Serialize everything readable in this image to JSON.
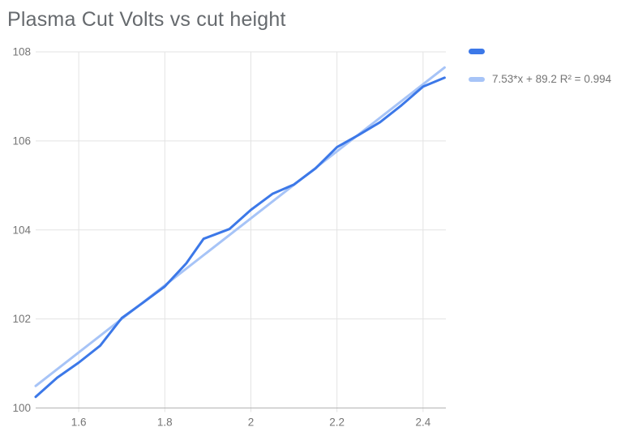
{
  "chart_data": {
    "type": "line",
    "title": "Plasma Cut Volts vs cut height",
    "xlabel": "",
    "ylabel": "",
    "xlim": [
      1.5,
      2.453
    ],
    "ylim": [
      100,
      108
    ],
    "grid": true,
    "legend_position": "top-right",
    "x_ticks": [
      {
        "value": 1.6,
        "label": "1.6"
      },
      {
        "value": 1.8,
        "label": "1.8"
      },
      {
        "value": 2.0,
        "label": "2"
      },
      {
        "value": 2.2,
        "label": "2.2"
      },
      {
        "value": 2.4,
        "label": "2.4"
      }
    ],
    "y_ticks": [
      {
        "value": 100,
        "label": "100"
      },
      {
        "value": 102,
        "label": "102"
      },
      {
        "value": 104,
        "label": "104"
      },
      {
        "value": 106,
        "label": "106"
      },
      {
        "value": 108,
        "label": "108"
      }
    ],
    "series": [
      {
        "name": "",
        "role": "data",
        "color": "#3c78e8",
        "points": [
          [
            1.5,
            100.25
          ],
          [
            1.55,
            100.68
          ],
          [
            1.6,
            101.02
          ],
          [
            1.65,
            101.4
          ],
          [
            1.7,
            102.02
          ],
          [
            1.75,
            102.37
          ],
          [
            1.8,
            102.73
          ],
          [
            1.85,
            103.25
          ],
          [
            1.89,
            103.8
          ],
          [
            1.95,
            104.02
          ],
          [
            2.0,
            104.45
          ],
          [
            2.05,
            104.81
          ],
          [
            2.1,
            105.02
          ],
          [
            2.15,
            105.38
          ],
          [
            2.2,
            105.86
          ],
          [
            2.25,
            106.13
          ],
          [
            2.3,
            106.42
          ],
          [
            2.35,
            106.8
          ],
          [
            2.4,
            107.22
          ],
          [
            2.45,
            107.42
          ]
        ]
      },
      {
        "name": "7.53*x + 89.2 R² = 0.994",
        "role": "trendline",
        "color": "#a7c4f7",
        "slope": 7.53,
        "intercept": 89.2,
        "r_squared": 0.994,
        "x_range": [
          1.5,
          2.45
        ]
      }
    ]
  },
  "styles": {
    "gridline_color": "#e3e3e3",
    "baseline_color": "#b3b3b3",
    "tick_label_color": "#757575",
    "title_color": "#666a6e",
    "background": "#ffffff"
  }
}
